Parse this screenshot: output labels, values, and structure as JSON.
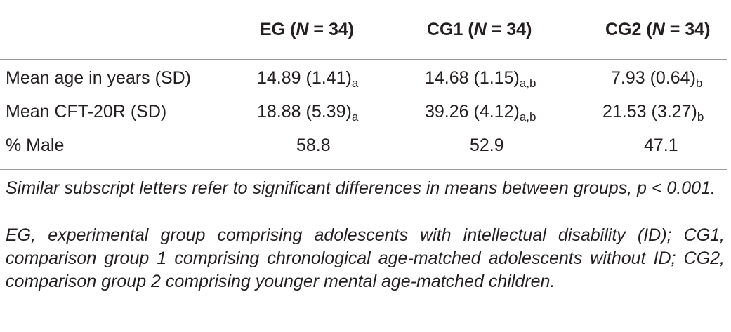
{
  "table": {
    "columns": [
      {
        "group": "EG",
        "n_label": "N",
        "n_value": "34"
      },
      {
        "group": "CG1",
        "n_label": "N",
        "n_value": "34"
      },
      {
        "group": "CG2",
        "n_label": "N",
        "n_value": "34"
      }
    ],
    "rows": [
      {
        "label": "Mean age in years (SD)",
        "cells": [
          {
            "value": "14.89 (1.41)",
            "sub": "a"
          },
          {
            "value": "14.68 (1.15)",
            "sub": "a,b"
          },
          {
            "value": "7.93 (0.64)",
            "sub": "b"
          }
        ]
      },
      {
        "label": "Mean CFT-20R (SD)",
        "cells": [
          {
            "value": "18.88 (5.39)",
            "sub": "a"
          },
          {
            "value": "39.26 (4.12)",
            "sub": "a,b"
          },
          {
            "value": "21.53 (3.27)",
            "sub": "b"
          }
        ]
      },
      {
        "label": "% Male",
        "cells": [
          {
            "value": "58.8",
            "sub": ""
          },
          {
            "value": "52.9",
            "sub": ""
          },
          {
            "value": "47.1",
            "sub": ""
          }
        ]
      }
    ]
  },
  "notes": {
    "significance": "Similar subscript letters refer to significant differences in means between groups, p < 0.001.",
    "abbreviations": "EG, experimental group comprising adolescents with intellectual disability (ID); CG1, comparison group 1 comprising chronological age-matched adoles­cents without ID; CG2, comparison group 2 comprising younger mental age-matched children."
  }
}
